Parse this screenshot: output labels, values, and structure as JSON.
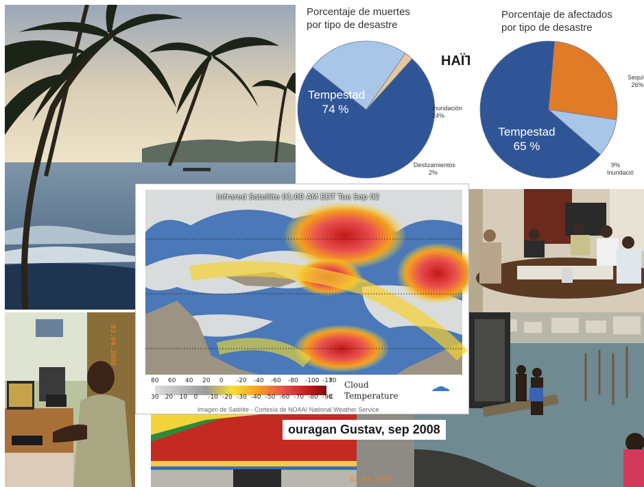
{
  "chart_data": [
    {
      "type": "pie",
      "title": "Porcentaje de muertes por tipo de desastre",
      "title_lines": [
        "Porcentaje de muertes",
        "por tipo de desastre"
      ],
      "slices": [
        {
          "label": "Tempestad",
          "value": 74,
          "display": "74 %",
          "color": "#2f5597"
        },
        {
          "label": "Inundación",
          "value": 24,
          "display": "24%",
          "color": "#a9c6e8"
        },
        {
          "label": "Deslizamientos",
          "value": 2,
          "display": "2%",
          "color": "#e8c79a"
        }
      ]
    },
    {
      "type": "pie",
      "title": "Porcentaje de afectados por tipo de desastre",
      "title_lines": [
        "Porcentaje de afectados",
        "por tipo de desastre"
      ],
      "slices": [
        {
          "label": "Tempestad",
          "value": 65,
          "display": "65 %",
          "color": "#2f5597"
        },
        {
          "label": "Sequí",
          "value": 26,
          "display": "26%",
          "color": "#e07b28"
        },
        {
          "label": "Inundació",
          "value": 9,
          "display": "9%",
          "color": "#a9c6e8"
        }
      ]
    }
  ],
  "haiti_label": "HAÏTI",
  "satellite": {
    "title": "Infrared Satellite 01:00 AM EDT Tue Sep 02",
    "scale_f": [
      "80",
      "60",
      "40",
      "20",
      "0",
      "-20",
      "-40",
      "-60",
      "-80",
      "-100",
      "-130"
    ],
    "scale_c": [
      "30",
      "20",
      "10",
      "0",
      "-10",
      "-20",
      "-30",
      "-40",
      "-50",
      "-60",
      "-70",
      "-80",
      "-90"
    ],
    "unit_f": "F",
    "unit_c": "C",
    "legend_line1": "Cloud",
    "legend_line2": "Temperature",
    "credit": "Imagen de Satélite - Cortesía de NOAA/ National Weather Service"
  },
  "caption": "ouragan Gustav, sep 2008",
  "photo_stamps": {
    "office": "03.04.2008",
    "truck": "02.04.2008"
  },
  "colors": {
    "tempestad": "#2f5597",
    "inundacion": "#a9c6e8",
    "sequia": "#e07b28",
    "deslizamientos": "#e8c79a"
  }
}
